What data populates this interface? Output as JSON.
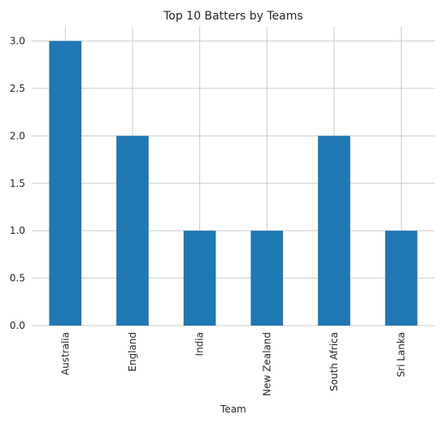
{
  "chart_data": {
    "type": "bar",
    "title": "Top 10 Batters by Teams",
    "xlabel": "Team",
    "ylabel": "",
    "categories": [
      "Australia",
      "England",
      "India",
      "New Zealand",
      "South Africa",
      "Sri Lanka"
    ],
    "values": [
      3,
      2,
      1,
      1,
      2,
      1
    ],
    "ylim": [
      0,
      3.15
    ],
    "yticks": [
      "0.0",
      "0.5",
      "1.0",
      "1.5",
      "2.0",
      "2.5",
      "3.0"
    ],
    "grid": true,
    "bar_color": "#1f77b4",
    "grid_color": "#cccccc"
  }
}
